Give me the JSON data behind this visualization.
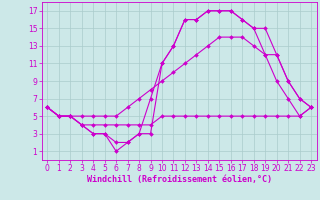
{
  "background_color": "#cce8e8",
  "grid_color": "#aacccc",
  "line_color": "#cc00cc",
  "marker": "D",
  "markersize": 2,
  "linewidth": 0.8,
  "xlabel": "Windchill (Refroidissement éolien,°C)",
  "xlabel_fontsize": 6,
  "tick_fontsize": 5.5,
  "xlim": [
    -0.5,
    23.5
  ],
  "ylim": [
    0,
    18
  ],
  "xticks": [
    0,
    1,
    2,
    3,
    4,
    5,
    6,
    7,
    8,
    9,
    10,
    11,
    12,
    13,
    14,
    15,
    16,
    17,
    18,
    19,
    20,
    21,
    22,
    23
  ],
  "yticks": [
    1,
    3,
    5,
    7,
    9,
    11,
    13,
    15,
    17
  ],
  "series": [
    [
      6,
      5,
      5,
      4,
      4,
      4,
      4,
      4,
      4,
      4,
      5,
      5,
      5,
      5,
      5,
      5,
      5,
      5,
      5,
      5,
      5,
      5,
      5,
      6
    ],
    [
      6,
      5,
      5,
      5,
      5,
      5,
      5,
      6,
      7,
      8,
      9,
      10,
      11,
      12,
      13,
      14,
      14,
      14,
      13,
      12,
      12,
      9,
      7,
      6
    ],
    [
      6,
      5,
      5,
      4,
      3,
      3,
      2,
      2,
      3,
      3,
      11,
      13,
      16,
      16,
      17,
      17,
      17,
      16,
      15,
      15,
      12,
      9,
      7,
      6
    ],
    [
      6,
      5,
      5,
      4,
      3,
      3,
      1,
      2,
      3,
      7,
      11,
      13,
      16,
      16,
      17,
      17,
      17,
      16,
      15,
      12,
      9,
      7,
      5,
      6
    ]
  ]
}
